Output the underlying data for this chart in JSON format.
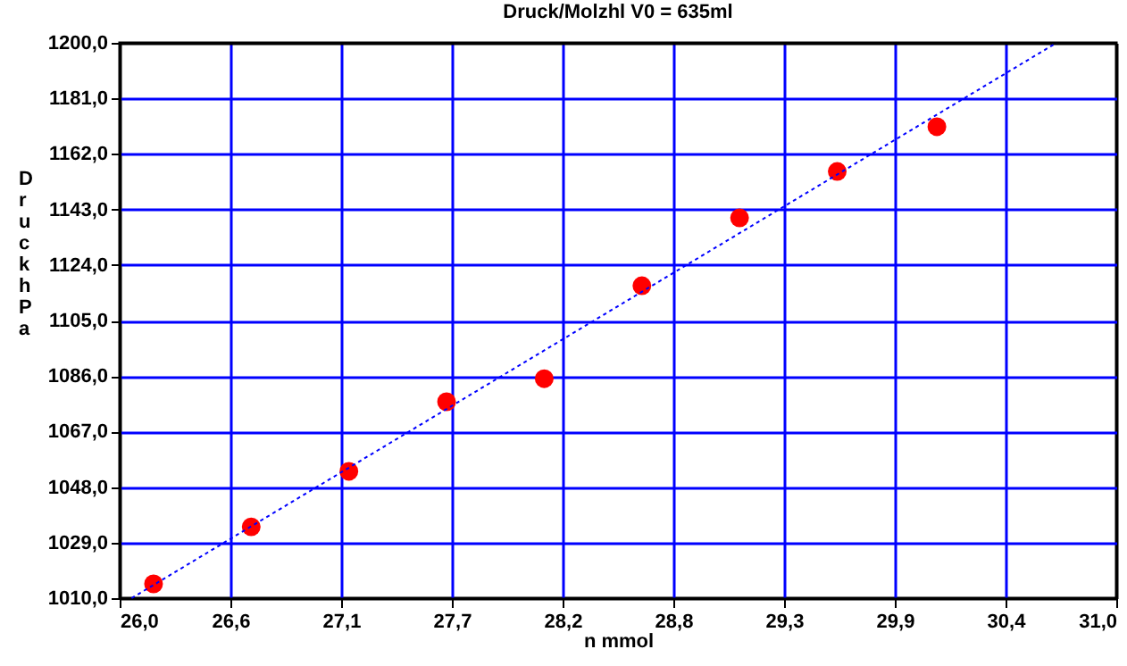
{
  "chart_data": {
    "type": "scatter",
    "title": "Druck/Molzhl       V0 = 635ml",
    "xlabel": "n        mmol",
    "ylabel": "Druck hPa",
    "xlim": [
      26.0,
      31.0
    ],
    "ylim": [
      1010.0,
      1200.0
    ],
    "xticks": [
      {
        "value": 26.0,
        "label": "26,0"
      },
      {
        "value": 26.5556,
        "label": "26,6"
      },
      {
        "value": 27.1111,
        "label": "27,1"
      },
      {
        "value": 27.6667,
        "label": "27,7"
      },
      {
        "value": 28.2222,
        "label": "28,2"
      },
      {
        "value": 28.7778,
        "label": "28,8"
      },
      {
        "value": 29.3333,
        "label": "29,3"
      },
      {
        "value": 29.8889,
        "label": "29,9"
      },
      {
        "value": 30.4444,
        "label": "30,4"
      },
      {
        "value": 31.0,
        "label": "31,0"
      }
    ],
    "yticks": [
      {
        "value": 1010,
        "label": "1010,0"
      },
      {
        "value": 1029,
        "label": "1029,0"
      },
      {
        "value": 1048,
        "label": "1048,0"
      },
      {
        "value": 1067,
        "label": "1067,0"
      },
      {
        "value": 1086,
        "label": "1086,0"
      },
      {
        "value": 1105,
        "label": "1105,0"
      },
      {
        "value": 1124,
        "label": "1124,0"
      },
      {
        "value": 1143,
        "label": "1143,0"
      },
      {
        "value": 1162,
        "label": "1162,0"
      },
      {
        "value": 1181,
        "label": "1181,0"
      },
      {
        "value": 1200,
        "label": "1200,0"
      }
    ],
    "grid": true,
    "series": [
      {
        "type": "scatter",
        "color": "#ff0000",
        "marker": "circle",
        "x": [
          26.17,
          26.66,
          27.15,
          27.64,
          28.13,
          28.62,
          29.11,
          29.6,
          30.1
        ],
        "values": [
          1014.9,
          1034.4,
          1053.4,
          1077.2,
          1085.1,
          1116.9,
          1140.1,
          1156.0,
          1171.3
        ]
      },
      {
        "type": "line",
        "color": "#0000ff",
        "line_style": "dotted",
        "x": [
          26.06,
          30.7
        ],
        "values": [
          1010.0,
          1200.0
        ]
      }
    ]
  }
}
